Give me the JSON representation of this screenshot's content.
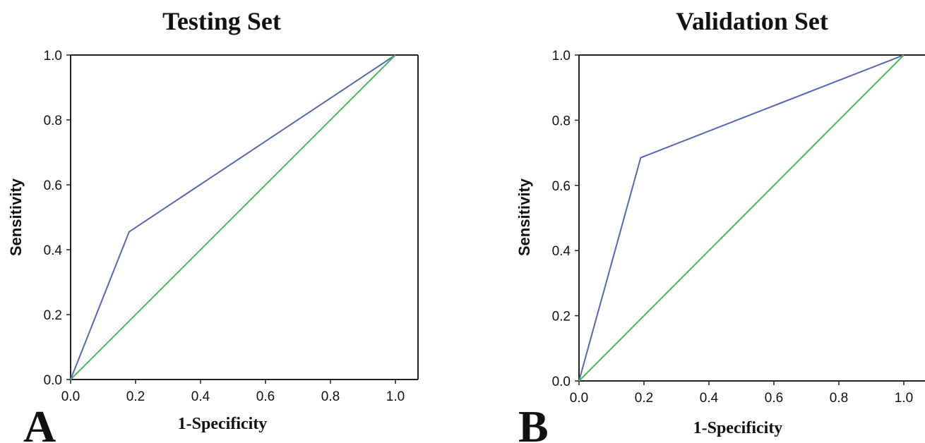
{
  "chart_data": [
    {
      "type": "line",
      "title": "Testing Set",
      "xlabel": "1-Specificity",
      "ylabel": "Sensitivity",
      "panel_label": "A",
      "xlim": [
        0,
        1
      ],
      "ylim": [
        0,
        1
      ],
      "x_ticks": [
        "0.0",
        "0.2",
        "0.4",
        "0.6",
        "0.8",
        "1.0"
      ],
      "y_ticks": [
        "0.0",
        "0.2",
        "0.4",
        "0.6",
        "0.8",
        "1.0"
      ],
      "grid": false,
      "series": [
        {
          "color": "#5566bb",
          "points": [
            [
              0,
              0
            ],
            [
              0.18,
              0.455
            ],
            [
              1,
              1
            ]
          ]
        },
        {
          "color": "#44bb55",
          "points": [
            [
              0,
              0
            ],
            [
              1,
              1
            ]
          ]
        }
      ]
    },
    {
      "type": "line",
      "title": "Validation Set",
      "xlabel": "1-Specificity",
      "ylabel": "Sensitivity",
      "panel_label": "B",
      "xlim": [
        0,
        1
      ],
      "ylim": [
        0,
        1
      ],
      "x_ticks": [
        "0.0",
        "0.2",
        "0.4",
        "0.6",
        "0.8",
        "1.0"
      ],
      "y_ticks": [
        "0.0",
        "0.2",
        "0.4",
        "0.6",
        "0.8",
        "1.0"
      ],
      "grid": false,
      "series": [
        {
          "color": "#5566bb",
          "points": [
            [
              0,
              0
            ],
            [
              0.19,
              0.685
            ],
            [
              1,
              1
            ]
          ]
        },
        {
          "color": "#44bb55",
          "points": [
            [
              0,
              0
            ],
            [
              1,
              1
            ]
          ]
        }
      ]
    }
  ]
}
